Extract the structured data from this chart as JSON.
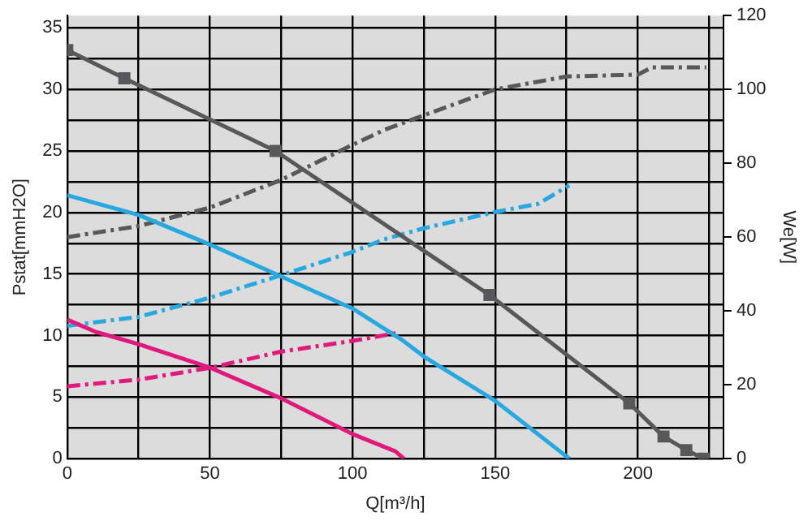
{
  "chart_data": {
    "type": "line",
    "xlabel": "Q[m³/h]",
    "ylabel": "Pstat[mmH2O]",
    "y2label": "We[W]",
    "xlim": [
      0,
      230
    ],
    "xticks": [
      0,
      {
        "value": 25,
        "label": null
      },
      50,
      {
        "value": 75,
        "label": null
      },
      100,
      {
        "value": 125,
        "label": null
      },
      150,
      {
        "value": 175,
        "label": null
      },
      200,
      {
        "value": 225,
        "label": null
      }
    ],
    "ylim": [
      0,
      36
    ],
    "yticks": [
      0,
      {
        "value": 2.5,
        "label": null
      },
      5,
      {
        "value": 7.5,
        "label": null
      },
      10,
      {
        "value": 12.5,
        "label": null
      },
      15,
      {
        "value": 17.5,
        "label": null
      },
      20,
      {
        "value": 22.5,
        "label": null
      },
      25,
      {
        "value": 27.5,
        "label": null
      },
      30,
      {
        "value": 32.5,
        "label": null
      },
      35
    ],
    "y2lim": [
      0,
      120
    ],
    "y2ticks": [
      0,
      20,
      40,
      60,
      80,
      100,
      120
    ],
    "grid": true,
    "legend": false,
    "series": [
      {
        "color": "#58585a",
        "marker": "square",
        "line_style": "solid",
        "x": [
          0,
          20,
          73,
          148,
          197,
          209,
          217,
          223
        ],
        "values": [
          33.2,
          30.9,
          25,
          13.3,
          4.5,
          1.8,
          0.7,
          0
        ]
      },
      {
        "color": "#29a8e0",
        "marker": "none",
        "line_style": "solid",
        "x": [
          0,
          25,
          50,
          75,
          100,
          117,
          125,
          150,
          176
        ],
        "values": [
          21.4,
          19.8,
          17.4,
          14.8,
          12.2,
          9.7,
          8.3,
          4.7,
          0
        ]
      },
      {
        "color": "#e0197d",
        "marker": "none",
        "line_style": "solid",
        "x": [
          0,
          10,
          25,
          50,
          75,
          100,
          115,
          118
        ],
        "values": [
          11.3,
          10.3,
          9.3,
          7.4,
          4.9,
          2.0,
          0.6,
          0
        ]
      },
      {
        "color": "#58585a",
        "marker": "none",
        "line_style": "dashed",
        "axis": "y2",
        "x": [
          0,
          25,
          50,
          75,
          100,
          111,
          125,
          150,
          175,
          200,
          205,
          224
        ],
        "values": [
          60,
          63,
          68,
          75.5,
          85,
          89,
          93,
          100,
          103.5,
          104,
          106,
          106
        ]
      },
      {
        "color": "#29a8e0",
        "marker": "none",
        "line_style": "dashed",
        "axis": "y2",
        "x": [
          0,
          25,
          50,
          75,
          100,
          111,
          125,
          150,
          165,
          176
        ],
        "values": [
          36,
          38.4,
          43.6,
          49.7,
          56,
          59.4,
          62.4,
          66.8,
          69,
          74
        ]
      },
      {
        "color": "#e0197d",
        "marker": "none",
        "line_style": "dashed",
        "axis": "y2",
        "x": [
          0,
          25,
          50,
          75,
          100,
          116
        ],
        "values": [
          19.6,
          21.4,
          24.6,
          29,
          31.9,
          34.1
        ]
      }
    ]
  }
}
